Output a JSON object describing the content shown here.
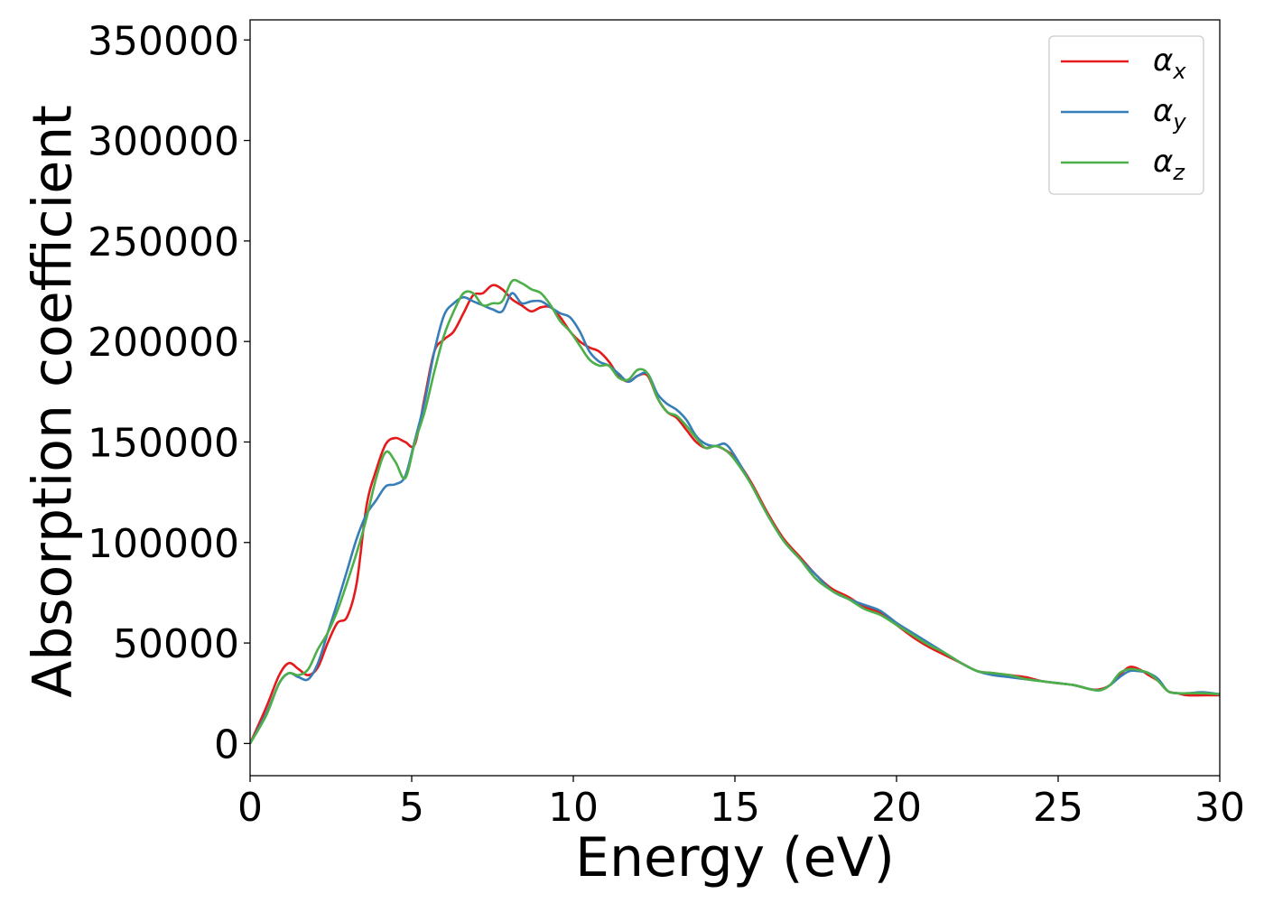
{
  "chart_data": {
    "type": "line",
    "title": "",
    "xlabel": "Energy (eV)",
    "ylabel": "Absorption coefficient",
    "xlim": [
      0,
      30
    ],
    "ylim": [
      -16000,
      360000
    ],
    "xticks": [
      0,
      5,
      10,
      15,
      20,
      25,
      30
    ],
    "yticks": [
      0,
      50000,
      100000,
      150000,
      200000,
      250000,
      300000,
      350000
    ],
    "grid": false,
    "legend_position": "top-right",
    "series": [
      {
        "name": "αx",
        "legend": {
          "base": "α",
          "sub": "x"
        },
        "color": "#e41a1c",
        "x": [
          0,
          0.5,
          0.9,
          1.2,
          1.5,
          1.8,
          2.1,
          2.4,
          2.7,
          3.0,
          3.3,
          3.6,
          3.9,
          4.2,
          4.5,
          4.8,
          5.1,
          5.4,
          5.7,
          6.0,
          6.3,
          6.6,
          6.9,
          7.2,
          7.5,
          7.8,
          8.1,
          8.4,
          8.7,
          9.0,
          9.3,
          9.6,
          9.9,
          10.2,
          10.5,
          10.8,
          11.1,
          11.4,
          11.7,
          12.0,
          12.3,
          12.6,
          12.9,
          13.2,
          13.5,
          13.8,
          14.1,
          14.4,
          14.7,
          15.0,
          15.5,
          16.0,
          16.5,
          17.0,
          17.5,
          18.0,
          18.5,
          19.0,
          19.5,
          20.0,
          20.5,
          21.0,
          21.5,
          22.0,
          22.5,
          23.0,
          23.5,
          24.0,
          24.5,
          25.0,
          25.5,
          26.0,
          26.3,
          26.6,
          26.9,
          27.2,
          27.5,
          27.8,
          28.1,
          28.4,
          28.7,
          29.0,
          29.5,
          30.0
        ],
        "y": [
          0,
          18000,
          34000,
          40000,
          37000,
          34000,
          38000,
          50000,
          60000,
          63000,
          80000,
          118000,
          136000,
          149000,
          152000,
          150000,
          149000,
          172000,
          195000,
          201000,
          205000,
          214000,
          223000,
          224000,
          228000,
          226000,
          221000,
          218000,
          215000,
          217000,
          217000,
          212000,
          205000,
          200000,
          197000,
          195000,
          190000,
          183000,
          180000,
          183000,
          183000,
          172000,
          165000,
          162000,
          156000,
          150000,
          147000,
          148000,
          146000,
          142000,
          130000,
          115000,
          102000,
          93000,
          84000,
          77000,
          73000,
          68000,
          65000,
          59000,
          53000,
          48000,
          44000,
          40000,
          36000,
          35000,
          34000,
          33000,
          31000,
          30000,
          29000,
          27000,
          27000,
          29000,
          34000,
          38000,
          37000,
          34000,
          31000,
          26000,
          25000,
          24000,
          24000,
          24000
        ]
      },
      {
        "name": "αy",
        "legend": {
          "base": "α",
          "sub": "y"
        },
        "color": "#377eb8",
        "x": [
          0,
          0.5,
          0.9,
          1.2,
          1.5,
          1.8,
          2.1,
          2.4,
          2.7,
          3.0,
          3.3,
          3.6,
          3.9,
          4.2,
          4.5,
          4.8,
          5.1,
          5.4,
          5.7,
          6.0,
          6.3,
          6.6,
          6.9,
          7.2,
          7.5,
          7.8,
          8.1,
          8.4,
          8.7,
          9.0,
          9.3,
          9.6,
          9.9,
          10.2,
          10.5,
          10.8,
          11.1,
          11.4,
          11.7,
          12.0,
          12.3,
          12.6,
          12.9,
          13.2,
          13.5,
          13.8,
          14.1,
          14.4,
          14.7,
          15.0,
          15.5,
          16.0,
          16.5,
          17.0,
          17.5,
          18.0,
          18.5,
          19.0,
          19.5,
          20.0,
          20.5,
          21.0,
          21.5,
          22.0,
          22.5,
          23.0,
          23.5,
          24.0,
          24.5,
          25.0,
          25.5,
          26.0,
          26.3,
          26.6,
          26.9,
          27.2,
          27.5,
          27.8,
          28.1,
          28.4,
          28.7,
          29.0,
          29.5,
          30.0
        ],
        "y": [
          0,
          15000,
          30000,
          35000,
          33000,
          32000,
          40000,
          55000,
          70000,
          86000,
          102000,
          114000,
          121000,
          128000,
          129000,
          133000,
          151000,
          170000,
          195000,
          213000,
          219000,
          222000,
          220000,
          218000,
          216000,
          215000,
          224000,
          219000,
          220000,
          220000,
          217000,
          214000,
          212000,
          205000,
          195000,
          190000,
          188000,
          184000,
          180000,
          183000,
          184000,
          174000,
          169000,
          166000,
          161000,
          153000,
          149000,
          148000,
          149000,
          143000,
          129000,
          114000,
          101000,
          92000,
          84000,
          76000,
          72000,
          69000,
          66000,
          60000,
          55000,
          50000,
          45000,
          40000,
          36000,
          34000,
          33000,
          32000,
          31000,
          30000,
          29000,
          27000,
          26500,
          29000,
          33000,
          36000,
          36000,
          35000,
          32000,
          26000,
          25000,
          25000,
          25500,
          24500
        ]
      },
      {
        "name": "αz",
        "legend": {
          "base": "α",
          "sub": "z"
        },
        "color": "#4daf4a",
        "x": [
          0,
          0.5,
          0.9,
          1.2,
          1.5,
          1.8,
          2.1,
          2.4,
          2.7,
          3.0,
          3.3,
          3.6,
          3.9,
          4.2,
          4.5,
          4.8,
          5.1,
          5.4,
          5.7,
          6.0,
          6.3,
          6.6,
          6.9,
          7.2,
          7.5,
          7.8,
          8.1,
          8.4,
          8.7,
          9.0,
          9.3,
          9.6,
          9.9,
          10.2,
          10.5,
          10.8,
          11.1,
          11.4,
          11.7,
          12.0,
          12.3,
          12.6,
          12.9,
          13.2,
          13.5,
          13.8,
          14.1,
          14.4,
          14.7,
          15.0,
          15.5,
          16.0,
          16.5,
          17.0,
          17.5,
          18.0,
          18.5,
          19.0,
          19.5,
          20.0,
          20.5,
          21.0,
          21.5,
          22.0,
          22.5,
          23.0,
          23.5,
          24.0,
          24.5,
          25.0,
          25.5,
          26.0,
          26.3,
          26.6,
          26.9,
          27.2,
          27.5,
          27.8,
          28.1,
          28.4,
          28.7,
          29.0,
          29.5,
          30.0
        ],
        "y": [
          0,
          14000,
          30000,
          35000,
          34000,
          37000,
          47000,
          55000,
          66000,
          80000,
          95000,
          112000,
          132000,
          145000,
          140000,
          132000,
          150000,
          165000,
          185000,
          203000,
          215000,
          224000,
          224000,
          218000,
          219000,
          220000,
          230000,
          229000,
          226000,
          224000,
          218000,
          210000,
          205000,
          198000,
          191000,
          188000,
          188000,
          182000,
          181000,
          186000,
          184000,
          172000,
          165000,
          163000,
          158000,
          152000,
          147000,
          148000,
          146000,
          141000,
          129000,
          114000,
          101000,
          92000,
          82000,
          76000,
          72000,
          67000,
          64000,
          59000,
          54000,
          49000,
          45000,
          40000,
          36000,
          35000,
          34000,
          32000,
          31000,
          30000,
          29000,
          27000,
          26500,
          29000,
          35000,
          37000,
          36500,
          35000,
          31000,
          26000,
          25000,
          25000,
          25000,
          24500
        ]
      }
    ]
  }
}
